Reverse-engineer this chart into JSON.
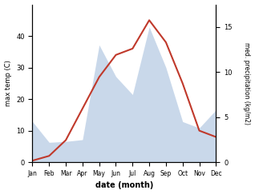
{
  "months": [
    "Jan",
    "Feb",
    "Mar",
    "Apr",
    "May",
    "Jun",
    "Jul",
    "Aug",
    "Sep",
    "Oct",
    "Nov",
    "Dec"
  ],
  "temperature": [
    0.5,
    2,
    7,
    17,
    27,
    34,
    36,
    45,
    38,
    25,
    10,
    8
  ],
  "precipitation": [
    4.5,
    2.2,
    2.3,
    2.5,
    13.0,
    9.5,
    7.5,
    15.0,
    10.5,
    4.5,
    3.8,
    5.8
  ],
  "temp_ylim": [
    0,
    50
  ],
  "precip_ylim": [
    0,
    17.5
  ],
  "temp_yticks": [
    0,
    10,
    20,
    30,
    40
  ],
  "precip_yticks": [
    0,
    5,
    10,
    15
  ],
  "precip_scale": 2.857,
  "ylabel_left": "max temp (C)",
  "ylabel_right": "med. precipitation (kg/m2)",
  "xlabel": "date (month)",
  "line_color": "#c0392b",
  "fill_color": "#b8cce4",
  "fill_alpha": 0.75,
  "bg_color": "#ffffff"
}
